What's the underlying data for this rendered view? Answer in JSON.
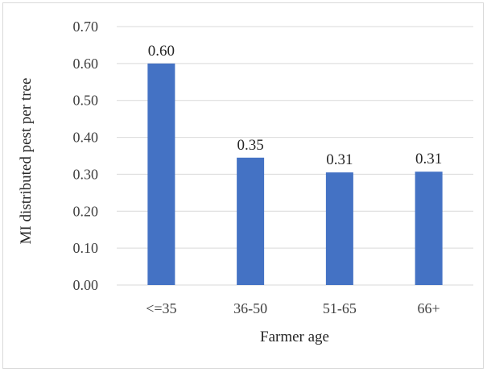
{
  "chart_data": {
    "type": "bar",
    "title": "",
    "xlabel": "Farmer age",
    "ylabel": "MI distributed pest per tree",
    "categories": [
      "<=35",
      "36-50",
      "51-65",
      "66+"
    ],
    "values": [
      0.6,
      0.345,
      0.305,
      0.307
    ],
    "data_labels": [
      "0.60",
      "0.35",
      "0.31",
      "0.31"
    ],
    "ylim": [
      0,
      0.7
    ],
    "yticks": [
      "0.00",
      "0.10",
      "0.20",
      "0.30",
      "0.40",
      "0.50",
      "0.60",
      "0.70"
    ],
    "grid": true,
    "legend": "none",
    "bar_color": "#4472c4",
    "grid_color": "#d9d9d9"
  }
}
